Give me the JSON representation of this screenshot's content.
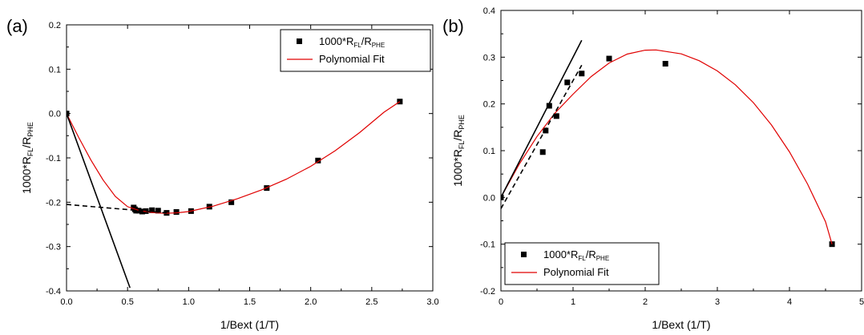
{
  "chart_data": [
    {
      "panel_label": "(a)",
      "type": "scatter",
      "xlabel": "1/Bext (1/T)",
      "ylabel": {
        "main": "1000*R",
        "sub1": "FL",
        "mid": "/R",
        "sub2": "PHE"
      },
      "xlim": [
        0.0,
        3.0
      ],
      "ylim": [
        -0.4,
        0.2
      ],
      "xticks": [
        "0.0",
        "0.5",
        "1.0",
        "1.5",
        "2.0",
        "2.5",
        "3.0"
      ],
      "yticks": [
        "-0.4",
        "-0.3",
        "-0.2",
        "-0.1",
        "0.0",
        "0.1",
        "0.2"
      ],
      "legend_position": "top-right",
      "legend": [
        {
          "kind": "marker",
          "main": "1000*R",
          "sub1": "FL",
          "mid": "/R",
          "sub2": "PHE"
        },
        {
          "kind": "line",
          "main": "Polynomial Fit",
          "color": "#e00000"
        }
      ],
      "series": [
        {
          "name": "1000*R_FL/R_PHE",
          "kind": "points",
          "x": [
            0.0,
            0.55,
            0.56,
            0.57,
            0.59,
            0.62,
            0.65,
            0.7,
            0.75,
            0.82,
            0.9,
            1.02,
            1.17,
            1.35,
            1.64,
            2.06,
            2.73
          ],
          "y": [
            0.0,
            -0.212,
            -0.216,
            -0.219,
            -0.219,
            -0.221,
            -0.22,
            -0.218,
            -0.219,
            -0.224,
            -0.222,
            -0.22,
            -0.21,
            -0.2,
            -0.168,
            -0.106,
            0.027
          ]
        },
        {
          "name": "Polynomial Fit",
          "kind": "curve",
          "color": "#e00000",
          "x": [
            0.0,
            0.1,
            0.2,
            0.3,
            0.4,
            0.5,
            0.6,
            0.7,
            0.8,
            0.9,
            1.0,
            1.2,
            1.4,
            1.6,
            1.8,
            2.0,
            2.2,
            2.4,
            2.6,
            2.73
          ],
          "y": [
            0.0,
            -0.054,
            -0.105,
            -0.15,
            -0.187,
            -0.21,
            -0.219,
            -0.223,
            -0.225,
            -0.224,
            -0.221,
            -0.209,
            -0.192,
            -0.172,
            -0.148,
            -0.119,
            -0.084,
            -0.043,
            0.003,
            0.027
          ]
        },
        {
          "name": "tangent-solid",
          "kind": "solid-line",
          "color": "#000000",
          "x": [
            0.0,
            0.52
          ],
          "y": [
            0.0,
            -0.393
          ]
        },
        {
          "name": "tangent-dashed",
          "kind": "dashed-line",
          "color": "#000000",
          "x": [
            0.0,
            0.82
          ],
          "y": [
            -0.205,
            -0.224
          ]
        }
      ]
    },
    {
      "panel_label": "(b)",
      "type": "scatter",
      "xlabel": "1/Bext (1/T)",
      "ylabel": {
        "main": "1000*R",
        "sub1": "FL",
        "mid": "/R",
        "sub2": "PHE"
      },
      "xlim": [
        0,
        5
      ],
      "ylim": [
        -0.2,
        0.4
      ],
      "xticks": [
        "0",
        "1",
        "2",
        "3",
        "4",
        "5"
      ],
      "yticks": [
        "-0.2",
        "-0.1",
        "0.0",
        "0.1",
        "0.2",
        "0.3",
        "0.4"
      ],
      "legend_position": "bottom-left",
      "legend": [
        {
          "kind": "marker",
          "main": "1000*R",
          "sub1": "FL",
          "mid": "/R",
          "sub2": "PHE"
        },
        {
          "kind": "line",
          "main": "Polynomial Fit",
          "color": "#e00000"
        }
      ],
      "series": [
        {
          "name": "1000*R_FL/R_PHE",
          "kind": "points",
          "x": [
            0.0,
            0.58,
            0.62,
            0.67,
            0.77,
            0.92,
            1.12,
            1.5,
            2.28,
            4.59
          ],
          "y": [
            0.0,
            0.097,
            0.143,
            0.196,
            0.174,
            0.246,
            0.265,
            0.297,
            0.286,
            -0.1
          ]
        },
        {
          "name": "Polynomial Fit",
          "kind": "curve",
          "color": "#e00000",
          "x": [
            0.0,
            0.25,
            0.5,
            0.75,
            1.0,
            1.25,
            1.5,
            1.75,
            2.0,
            2.15,
            2.5,
            2.75,
            3.0,
            3.25,
            3.5,
            3.75,
            4.0,
            4.25,
            4.5,
            4.59
          ],
          "y": [
            0.0,
            0.0702,
            0.1304,
            0.1806,
            0.2208,
            0.2584,
            0.2876,
            0.3065,
            0.3149,
            0.3155,
            0.3071,
            0.2924,
            0.2705,
            0.2409,
            0.2027,
            0.1551,
            0.0975,
            0.0289,
            -0.0521,
            -0.1
          ]
        },
        {
          "name": "tangent-solid",
          "kind": "solid-line",
          "color": "#000000",
          "x": [
            0.0,
            1.12
          ],
          "y": [
            0.0,
            0.336
          ]
        },
        {
          "name": "tangent-dashed",
          "kind": "dashed-line",
          "color": "#000000",
          "x": [
            0.0,
            1.12
          ],
          "y": [
            -0.024,
            0.283
          ]
        }
      ]
    }
  ]
}
